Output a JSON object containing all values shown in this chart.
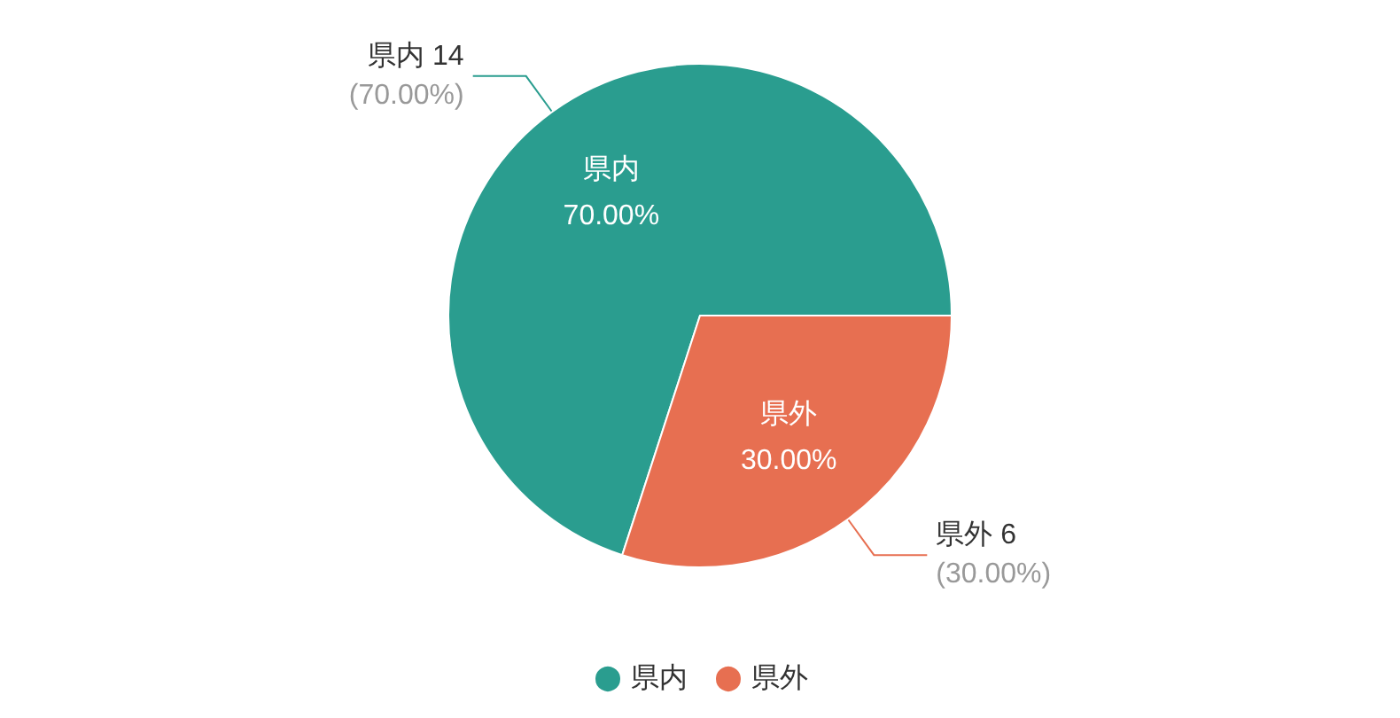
{
  "chart_data": {
    "type": "pie",
    "categories": [
      "県内",
      "県外"
    ],
    "values": [
      70,
      30
    ],
    "value_labels": [
      "70.00%",
      "30.00%"
    ],
    "annotations": [
      {
        "text": "県内 14\n(70.00%)",
        "x": "県内"
      },
      {
        "text": "県外 6\n(30.00%)",
        "x": "県外"
      }
    ],
    "colors": [
      "#2a9d8f",
      "#e76f51"
    ],
    "legend": "bottom"
  }
}
